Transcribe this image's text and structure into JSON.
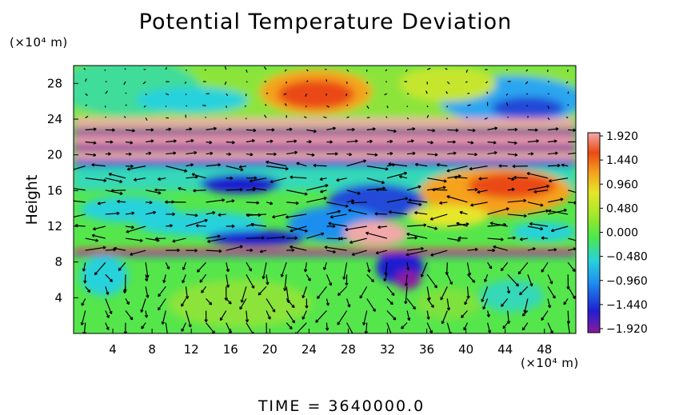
{
  "chart_data": {
    "type": "heatmap",
    "title": "Potential Temperature Deviation",
    "ylabel": "Height",
    "x_unit": "(×10⁴ m)",
    "y_unit": "(×10⁴ m)",
    "x_ticks": [
      4,
      8,
      12,
      16,
      20,
      24,
      28,
      32,
      36,
      40,
      44,
      48
    ],
    "y_ticks": [
      4,
      8,
      12,
      16,
      20,
      24,
      28
    ],
    "xlim": [
      0,
      51.2
    ],
    "ylim": [
      0,
      30
    ],
    "colorbar": {
      "labels": [
        "1.920",
        "1.440",
        "0.960",
        "0.480",
        "0.000",
        "−0.480",
        "−0.960",
        "−1.440",
        "−1.920"
      ],
      "range": [
        -1.92,
        1.92
      ]
    },
    "colorscale": [
      "#8a1aa0",
      "#1f1fd0",
      "#1e8ef0",
      "#28d2dc",
      "#4de84a",
      "#9ee82a",
      "#e6e62a",
      "#f5a21e",
      "#ea4a14",
      "#f2a8a8"
    ],
    "overlay": "wind vectors (arrows)",
    "footer": "TIME = 3640000.0"
  }
}
